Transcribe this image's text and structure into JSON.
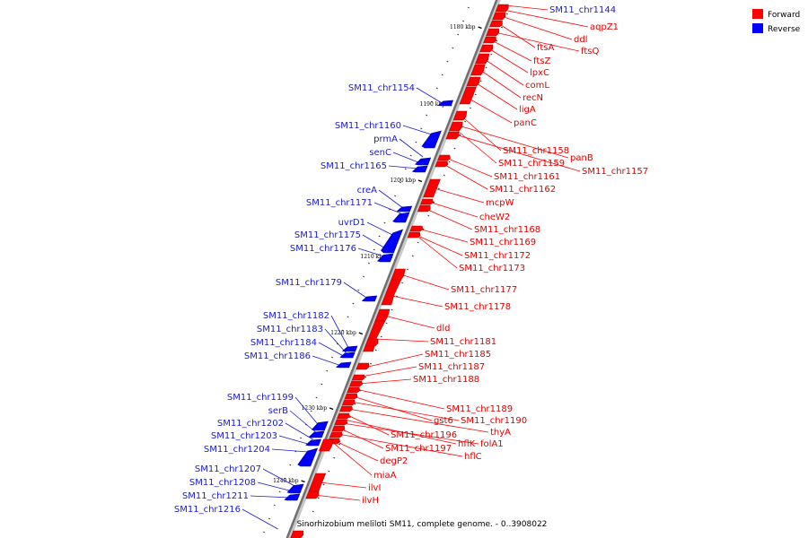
{
  "legend": [
    {
      "label": "Forward",
      "color": "#ff0000"
    },
    {
      "label": "Reverse",
      "color": "#0000ff"
    }
  ],
  "footer": "Sinorhizobium meliloti SM11, complete genome. - 0..3908022",
  "scale_labels": [
    "1180 kbp",
    "1190 kbp",
    "1200 kbp",
    "1210 kbp",
    "1220 kbp",
    "1230 kbp",
    "1240 kbp"
  ],
  "forward_genes": [
    "SM11_chr1144",
    "aqpZ1",
    "ddl",
    "ftsA",
    "ftsQ",
    "ftsZ",
    "lpxC",
    "comL",
    "recN",
    "ligA",
    "panC",
    "SM11_chr1158",
    "panB",
    "SM11_chr1159",
    "SM11_chr1157",
    "SM11_chr1161",
    "SM11_chr1162",
    "mcpW",
    "cheW2",
    "SM11_chr1168",
    "SM11_chr1169",
    "SM11_chr1172",
    "SM11_chr1173",
    "SM11_chr1177",
    "SM11_chr1178",
    "dld",
    "SM11_chr1181",
    "SM11_chr1185",
    "SM11_chr1187",
    "SM11_chr1188",
    "SM11_chr1189",
    "gst6",
    "SM11_chr1190",
    "thyA",
    "SM11_chr1196",
    "hflK",
    "folA1",
    "SM11_chr1197",
    "hflC",
    "degP2",
    "miaA",
    "ilvI",
    "ilvH"
  ],
  "reverse_genes": [
    "SM11_chr1154",
    "SM11_chr1160",
    "prmA",
    "senC",
    "SM11_chr1165",
    "creA",
    "SM11_chr1171",
    "uvrD1",
    "SM11_chr1175",
    "SM11_chr1176",
    "SM11_chr1179",
    "SM11_chr1182",
    "SM11_chr1183",
    "SM11_chr1184",
    "SM11_chr1186",
    "SM11_chr1199",
    "serB",
    "SM11_chr1202",
    "SM11_chr1203",
    "SM11_chr1204",
    "SM11_chr1207",
    "SM11_chr1208",
    "SM11_chr1211",
    "SM11_chr1216"
  ]
}
